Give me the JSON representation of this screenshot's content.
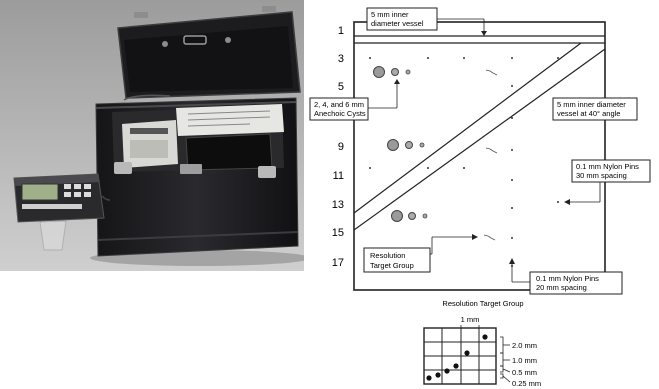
{
  "photo": {
    "caption": "",
    "colors": {
      "background": "#aaaaaa",
      "case": "#1f1f21",
      "case_highlight": "#4a4a4e",
      "lcd": "#9fb08a"
    }
  },
  "phantom": {
    "depth_labels": [
      "1",
      "3",
      "5",
      "9",
      "11",
      "13",
      "15",
      "17"
    ],
    "callouts": {
      "vessel_5mm_top": [
        "5 mm inner",
        "diameter vessel"
      ],
      "vessel_40deg": [
        "5 mm inner diameter",
        "vessel at 40° angle"
      ],
      "cysts": [
        "2, 4, and 6 mm",
        "Anechoic Cysts"
      ],
      "nylon_01_30": [
        "0.1 mm Nylon Pins",
        "30 mm spacing"
      ],
      "resolution_group": [
        "Resolution",
        "Target Group"
      ],
      "nylon_01_20": [
        "0.1 mm Nylon Pins",
        "20 mm spacing"
      ]
    }
  },
  "resolution_target": {
    "title": "Resolution Target Group",
    "top_label": "1 mm",
    "spacing_labels": [
      "2.0 mm",
      "1.0 mm",
      "0.5 mm",
      "0.25 mm"
    ]
  }
}
